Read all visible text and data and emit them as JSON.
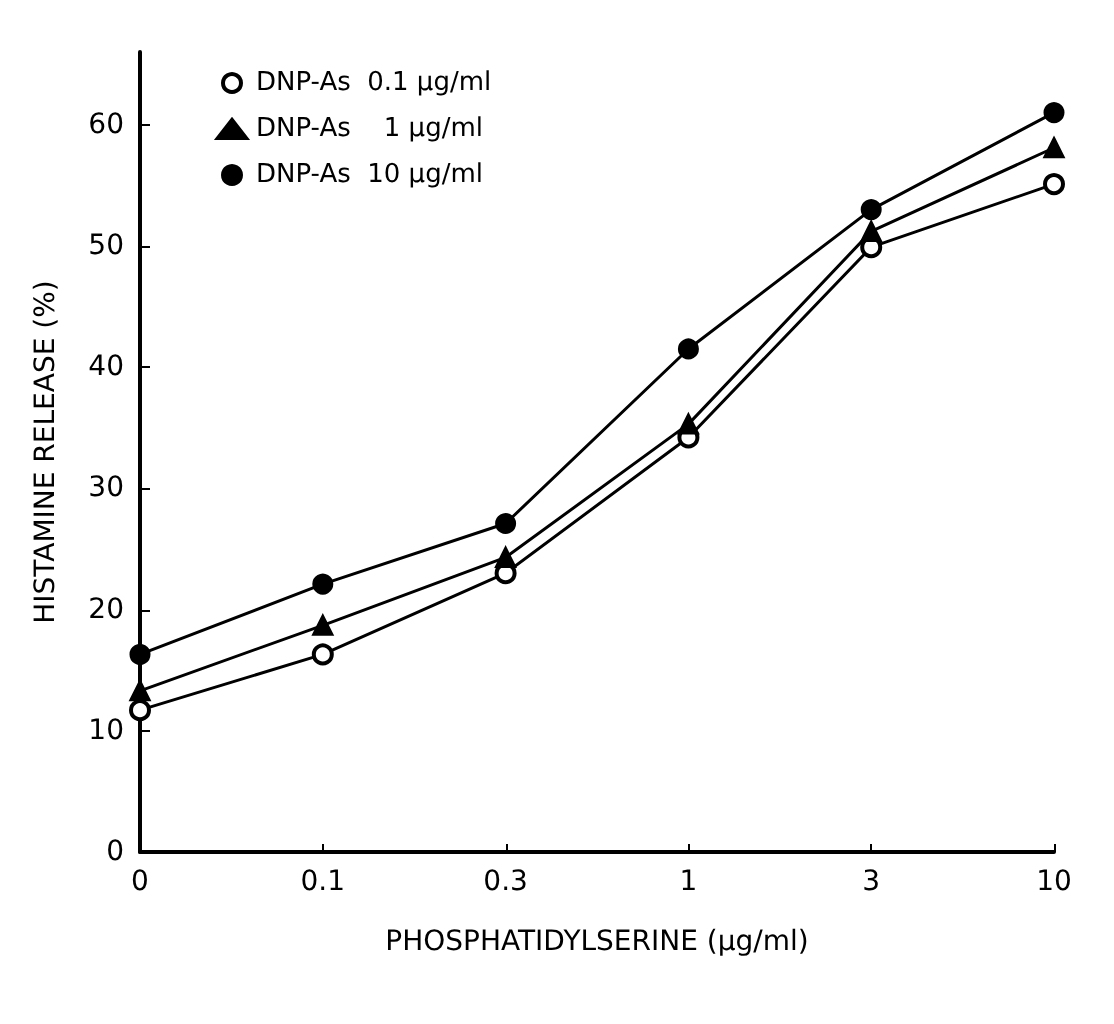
{
  "chart_data": {
    "type": "line",
    "xlabel": "PHOSPHATIDYLSERINE (µg/ml)",
    "ylabel": "HISTAMINE RELEASE (%)",
    "categories": [
      "0",
      "0.1",
      "0.3",
      "1",
      "3",
      "10"
    ],
    "series": [
      {
        "name": "DNP-As  0.1 µg/ml",
        "color": "#000000",
        "marker": "open circle",
        "values": [
          11.7,
          16.3,
          23.0,
          34.2,
          49.9,
          55.1
        ]
      },
      {
        "name": "DNP-As    1 µg/ml",
        "color": "#000000",
        "marker": "triangle",
        "values": [
          13.3,
          18.7,
          24.3,
          35.3,
          51.2,
          58.1
        ]
      },
      {
        "name": "DNP-As  10 µg/ml",
        "color": "#000000",
        "marker": "circle",
        "values": [
          16.3,
          22.1,
          27.1,
          41.5,
          53.0,
          61.0
        ]
      }
    ],
    "ylim": [
      0,
      66
    ],
    "yticks": [
      0,
      10,
      20,
      30,
      40,
      50,
      60
    ],
    "grid": false,
    "legend": "top left",
    "line_style": "solid"
  }
}
